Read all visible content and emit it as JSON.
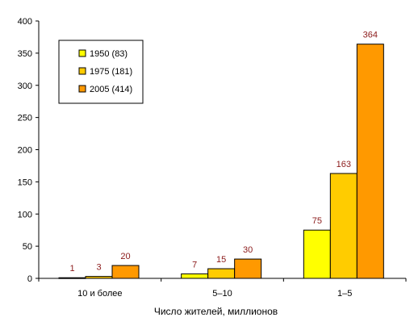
{
  "chart_data": {
    "type": "bar",
    "categories": [
      "10 и более",
      "5–10",
      "1–5"
    ],
    "series": [
      {
        "name": "1950 (83)",
        "values": [
          1,
          7,
          75
        ],
        "color": "#ffff00"
      },
      {
        "name": "1975 (181)",
        "values": [
          3,
          15,
          163
        ],
        "color": "#ffcc00"
      },
      {
        "name": "2005 (414)",
        "values": [
          20,
          30,
          364
        ],
        "color": "#ff9900"
      }
    ],
    "xlabel": "Число жителей, миллионов",
    "ylabel": "",
    "ylim": [
      0,
      400
    ],
    "yticks": [
      0,
      50,
      100,
      150,
      200,
      250,
      300,
      350,
      400
    ],
    "grid": false,
    "legend_position": "top-left"
  }
}
